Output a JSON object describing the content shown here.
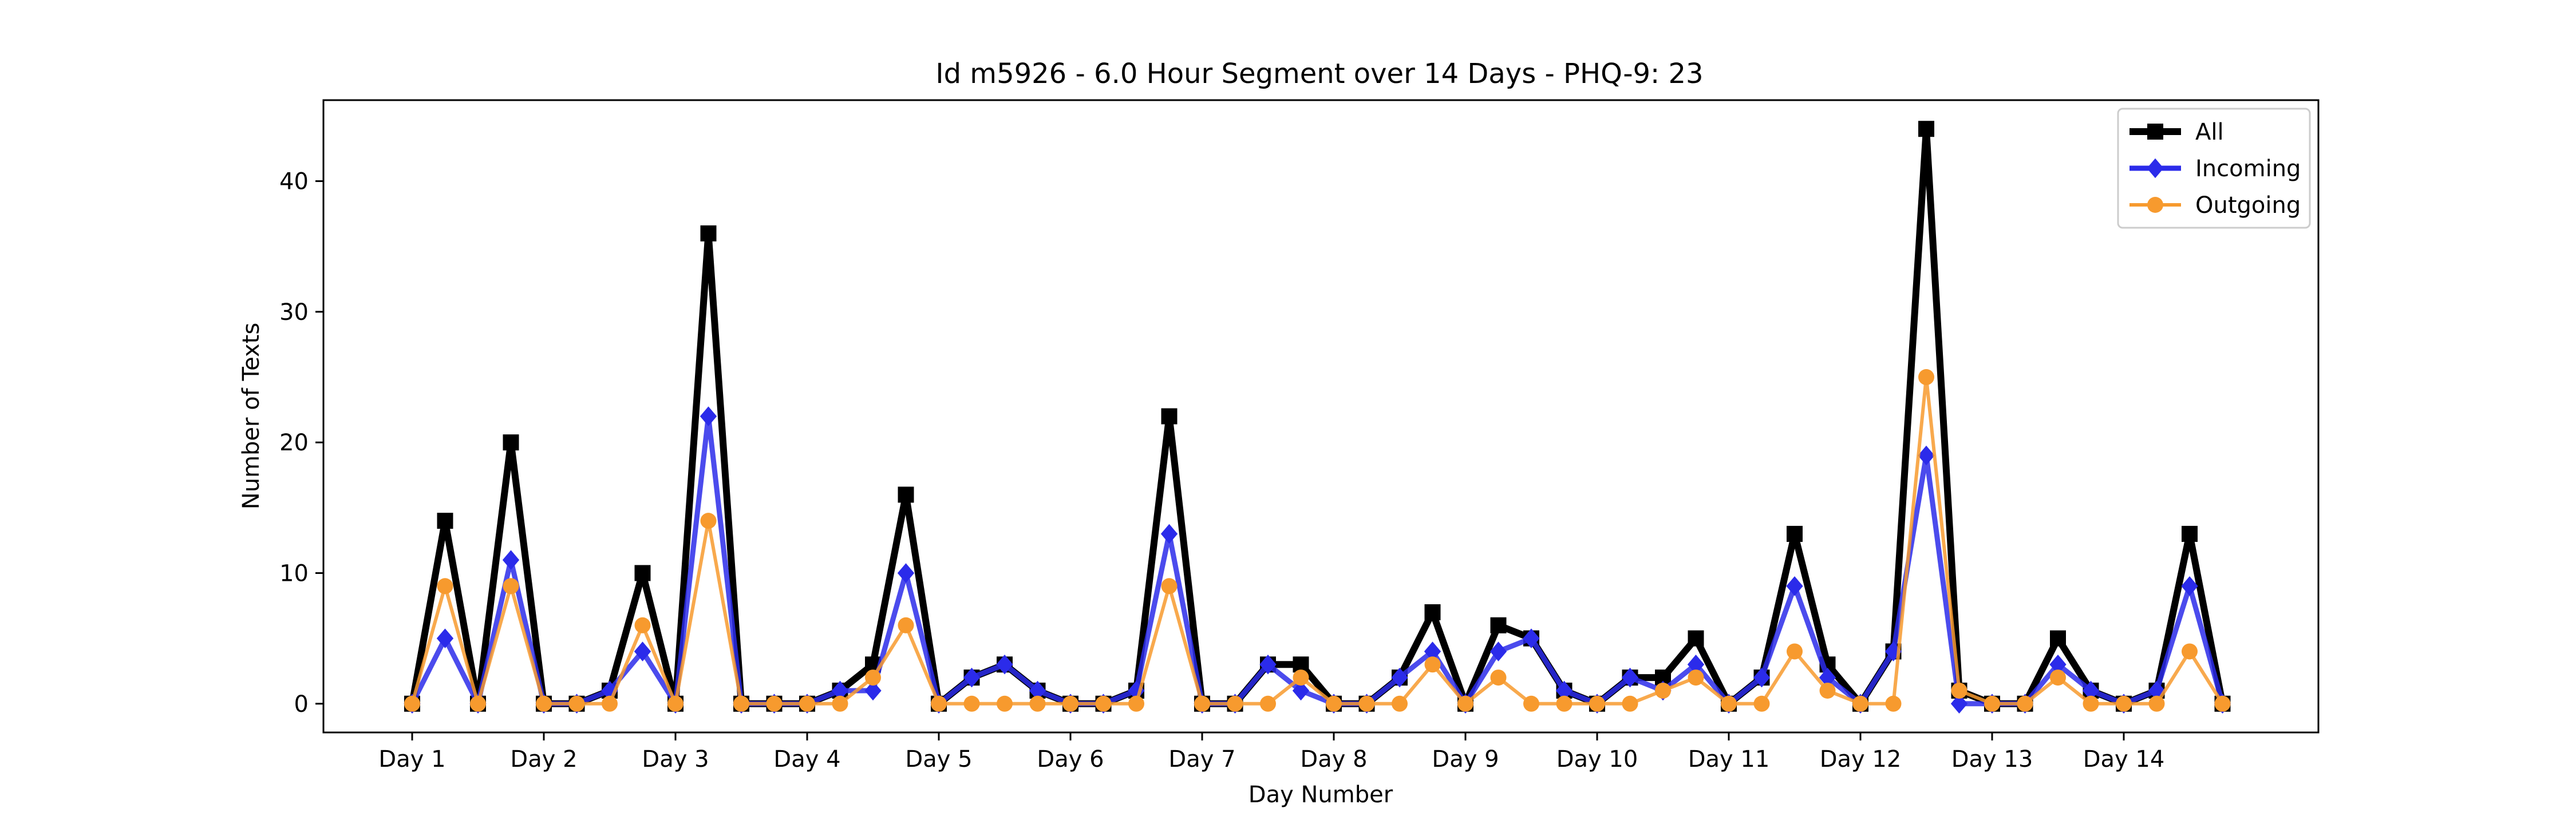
{
  "chart_data": {
    "type": "line",
    "title": "Id m5926 - 6.0 Hour Segment over 14 Days - PHQ-9: 23",
    "xlabel": "Day Number",
    "ylabel": "Number of Texts",
    "x_tick_labels": [
      "Day 1",
      "Day 2",
      "Day 3",
      "Day 4",
      "Day 5",
      "Day 6",
      "Day 7",
      "Day 8",
      "Day 9",
      "Day 10",
      "Day 11",
      "Day 12",
      "Day 13",
      "Day 14"
    ],
    "y_ticks": [
      0,
      10,
      20,
      30,
      40
    ],
    "ylim": [
      -2.2,
      46.2
    ],
    "grid": false,
    "legend_position": "top-right",
    "series": [
      {
        "name": "All",
        "color": "#000000",
        "marker": "square",
        "values": [
          0,
          14,
          0,
          20,
          0,
          0,
          1,
          10,
          0,
          36,
          0,
          0,
          0,
          1,
          3,
          16,
          0,
          2,
          3,
          1,
          0,
          0,
          1,
          22,
          0,
          0,
          3,
          3,
          0,
          0,
          2,
          7,
          0,
          6,
          5,
          1,
          0,
          2,
          2,
          5,
          0,
          2,
          13,
          3,
          0,
          4,
          44,
          1,
          0,
          0,
          5,
          1,
          0,
          1,
          13,
          0
        ]
      },
      {
        "name": "Incoming",
        "color": "#2b2bea",
        "marker": "diamond",
        "values": [
          0,
          5,
          0,
          11,
          0,
          0,
          1,
          4,
          0,
          22,
          0,
          0,
          0,
          1,
          1,
          10,
          0,
          2,
          3,
          1,
          0,
          0,
          1,
          13,
          0,
          0,
          3,
          1,
          0,
          0,
          2,
          4,
          0,
          4,
          5,
          1,
          0,
          2,
          1,
          3,
          0,
          2,
          9,
          2,
          0,
          4,
          19,
          0,
          0,
          0,
          3,
          1,
          0,
          1,
          9,
          0
        ]
      },
      {
        "name": "Outgoing",
        "color": "#f79a2e",
        "marker": "circle",
        "values": [
          0,
          9,
          0,
          9,
          0,
          0,
          0,
          6,
          0,
          14,
          0,
          0,
          0,
          0,
          2,
          6,
          0,
          0,
          0,
          0,
          0,
          0,
          0,
          9,
          0,
          0,
          0,
          2,
          0,
          0,
          0,
          3,
          0,
          2,
          0,
          0,
          0,
          0,
          1,
          2,
          0,
          0,
          4,
          1,
          0,
          0,
          25,
          1,
          0,
          0,
          2,
          0,
          0,
          0,
          4,
          0
        ]
      }
    ]
  }
}
